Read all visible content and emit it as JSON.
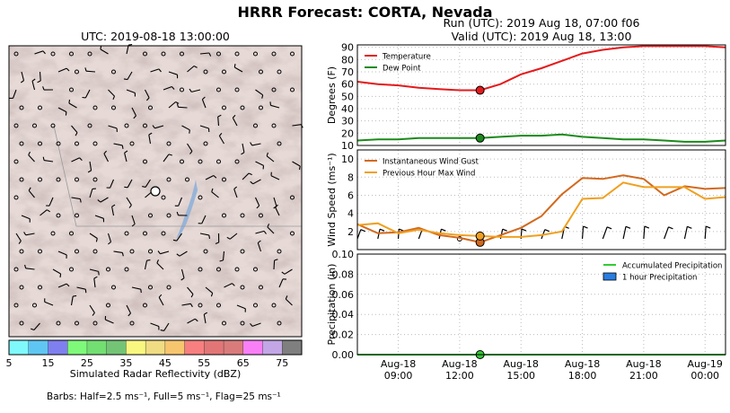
{
  "header": {
    "suptitle": "HRRR Forecast: CORTA, Nevada",
    "run": "Run (UTC): 2019 Aug 18, 07:00 f06",
    "valid": "Valid (UTC): 2019 Aug 18, 13:00"
  },
  "map": {
    "title": "UTC: 2019-08-18 13:00:00",
    "colorbar_label": "Simulated Radar Reflectivity (dBZ)",
    "colorbar_ticks": [
      "5",
      "15",
      "25",
      "35",
      "45",
      "55",
      "65",
      "75"
    ],
    "colorbar_colors": [
      "#7ff9fb",
      "#5fc6f3",
      "#7f7ff0",
      "#7ff97a",
      "#73de72",
      "#74c476",
      "#f9f77f",
      "#f0dc82",
      "#f7c56e",
      "#f77f7f",
      "#e27677",
      "#d97b7b",
      "#f97ff6",
      "#c2a6e5",
      "#7f7f7f"
    ],
    "barbs_note": "Barbs: Half=2.5 ms⁻¹, Full=5 ms⁻¹, Flag=25 ms⁻¹"
  },
  "time_axis": {
    "tick_labels": [
      [
        "Aug-18",
        "09:00"
      ],
      [
        "Aug-18",
        "12:00"
      ],
      [
        "Aug-18",
        "15:00"
      ],
      [
        "Aug-18",
        "18:00"
      ],
      [
        "Aug-18",
        "21:00"
      ],
      [
        "Aug-19",
        "00:00"
      ]
    ],
    "tick_hours": [
      9,
      12,
      15,
      18,
      21,
      24
    ],
    "xlim": [
      7,
      25
    ],
    "valid_hour": 13
  },
  "chart_data": [
    {
      "type": "line",
      "ylabel": "Degrees (F)",
      "ylim": [
        10,
        92
      ],
      "yticks": [
        10,
        20,
        30,
        40,
        50,
        60,
        70,
        80,
        90
      ],
      "legend_loc": "upper left",
      "x": [
        7,
        8,
        9,
        10,
        11,
        12,
        13,
        14,
        15,
        16,
        17,
        18,
        19,
        20,
        21,
        22,
        23,
        24,
        25
      ],
      "series": [
        {
          "name": "Temperature",
          "color": "#e41a1c",
          "values": [
            62,
            60,
            59,
            57,
            56,
            55,
            55,
            60,
            68,
            73,
            79,
            85,
            88,
            90,
            91,
            91,
            91,
            91,
            90
          ]
        },
        {
          "name": "Dew Point",
          "color": "#1b8a1b",
          "values": [
            14,
            15,
            15,
            16,
            16,
            16,
            16,
            17,
            18,
            18,
            19,
            17,
            16,
            15,
            15,
            14,
            13,
            13,
            14
          ]
        }
      ],
      "marker": {
        "x": 13,
        "values": [
          55,
          16
        ]
      }
    },
    {
      "type": "line",
      "ylabel": "Wind Speed (ms⁻¹)",
      "ylim": [
        0,
        11
      ],
      "yticks": [
        2,
        4,
        6,
        8,
        10
      ],
      "legend_loc": "upper left",
      "x": [
        7,
        8,
        9,
        10,
        11,
        12,
        13,
        14,
        15,
        16,
        17,
        18,
        19,
        20,
        21,
        22,
        23,
        24,
        25
      ],
      "series": [
        {
          "name": "Instantaneous Wind Gust",
          "color": "#d2691e",
          "values": [
            2.8,
            1.8,
            1.9,
            2.4,
            1.6,
            1.3,
            0.8,
            1.6,
            2.4,
            3.7,
            6.1,
            7.9,
            7.8,
            8.2,
            7.8,
            6.0,
            7.0,
            6.7,
            6.8
          ]
        },
        {
          "name": "Previous Hour Max Wind",
          "color": "#f0a020",
          "values": [
            2.7,
            2.9,
            1.8,
            2.2,
            1.8,
            1.6,
            1.5,
            1.4,
            1.4,
            1.6,
            2.0,
            5.6,
            5.7,
            7.4,
            6.9,
            6.9,
            6.9,
            5.6,
            5.8
          ]
        }
      ],
      "marker": {
        "x": 13,
        "values": [
          0.8,
          1.5
        ]
      }
    },
    {
      "type": "bar",
      "ylabel": "Precipitation (in)",
      "ylim": [
        0,
        0.1
      ],
      "yticks": [
        0.0,
        0.02,
        0.04,
        0.06,
        0.08,
        0.1
      ],
      "ytick_labels": [
        "0.00",
        "0.02",
        "0.04",
        "0.06",
        "0.08",
        "0.10"
      ],
      "legend_loc": "upper right",
      "x": [
        7,
        8,
        9,
        10,
        11,
        12,
        13,
        14,
        15,
        16,
        17,
        18,
        19,
        20,
        21,
        22,
        23,
        24,
        25
      ],
      "series": [
        {
          "name": "Accumulated Precipitation",
          "color": "#33cc33",
          "values": [
            0,
            0,
            0,
            0,
            0,
            0,
            0,
            0,
            0,
            0,
            0,
            0,
            0,
            0,
            0,
            0,
            0,
            0,
            0
          ]
        },
        {
          "name": "1 hour Precipitation",
          "color": "#2a7de1",
          "values": [
            0,
            0,
            0,
            0,
            0,
            0,
            0,
            0,
            0,
            0,
            0,
            0,
            0,
            0,
            0,
            0,
            0,
            0,
            0
          ]
        }
      ],
      "marker": {
        "x": 13,
        "values": [
          0
        ]
      }
    }
  ]
}
